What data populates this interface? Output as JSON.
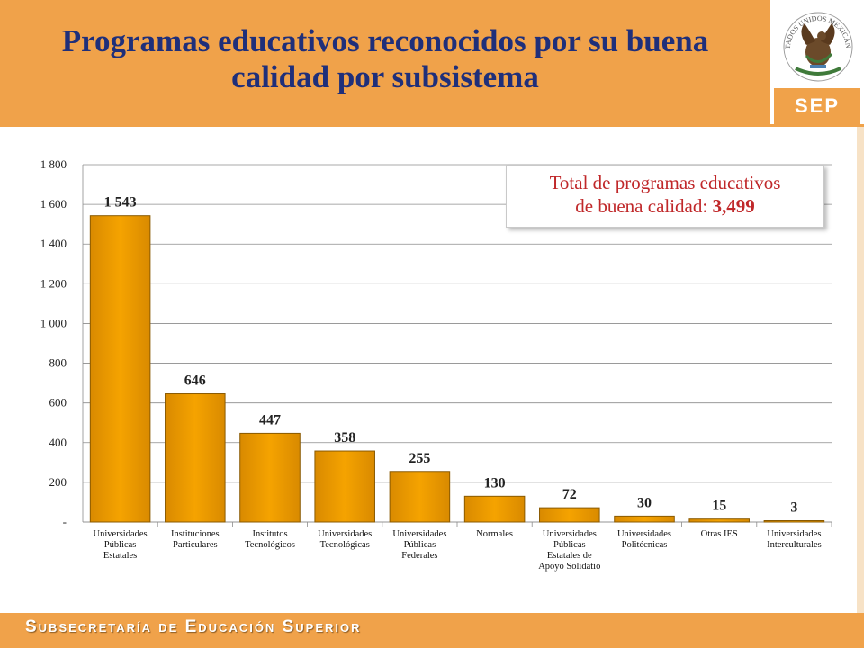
{
  "header": {
    "title": "Programas educativos reconocidos por su buena calidad por subsistema"
  },
  "logo": {
    "sep_label": "SEP",
    "seal_text": "ESTADOS UNIDOS MEXICANOS"
  },
  "footer": {
    "text": "Subsecretaría de Educación Superior"
  },
  "total_box": {
    "line1": "Total de programas educativos",
    "line2": "de buena calidad:",
    "value": "3,499"
  },
  "colors": {
    "accent": "#f0a24a",
    "bar": "#f5a300",
    "bar_edge": "#8a5a00",
    "title": "#1f2f7a",
    "total_text": "#c0282a"
  },
  "chart_data": {
    "type": "bar",
    "categories": [
      [
        "Universidades",
        "Públicas",
        "Estatales"
      ],
      [
        "Instituciones",
        "Particulares"
      ],
      [
        "Institutos",
        "Tecnológicos"
      ],
      [
        "Universidades",
        "Tecnológicas"
      ],
      [
        "Universidades",
        "Públicas",
        "Federales"
      ],
      [
        "Normales"
      ],
      [
        "Universidades",
        "Públicas",
        "Estatales de",
        "Apoyo Solidatio"
      ],
      [
        "Universidades",
        "Politécnicas"
      ],
      [
        "Otras IES"
      ],
      [
        "Universidades",
        "Interculturales"
      ]
    ],
    "values": [
      1543,
      646,
      447,
      358,
      255,
      130,
      72,
      30,
      15,
      3
    ],
    "value_labels": [
      "1 543",
      "646",
      "447",
      "358",
      "255",
      "130",
      "72",
      "30",
      "15",
      "3"
    ],
    "ylim": [
      0,
      1800
    ],
    "y_ticks": [
      0,
      200,
      400,
      600,
      800,
      1000,
      1200,
      1400,
      1600,
      1800
    ],
    "y_tick_labels": [
      "-",
      "200",
      "400",
      "600",
      "800",
      "1 000",
      "1 200",
      "1 400",
      "1 600",
      "1 800"
    ],
    "grid": true,
    "title": "",
    "xlabel": "",
    "ylabel": ""
  }
}
